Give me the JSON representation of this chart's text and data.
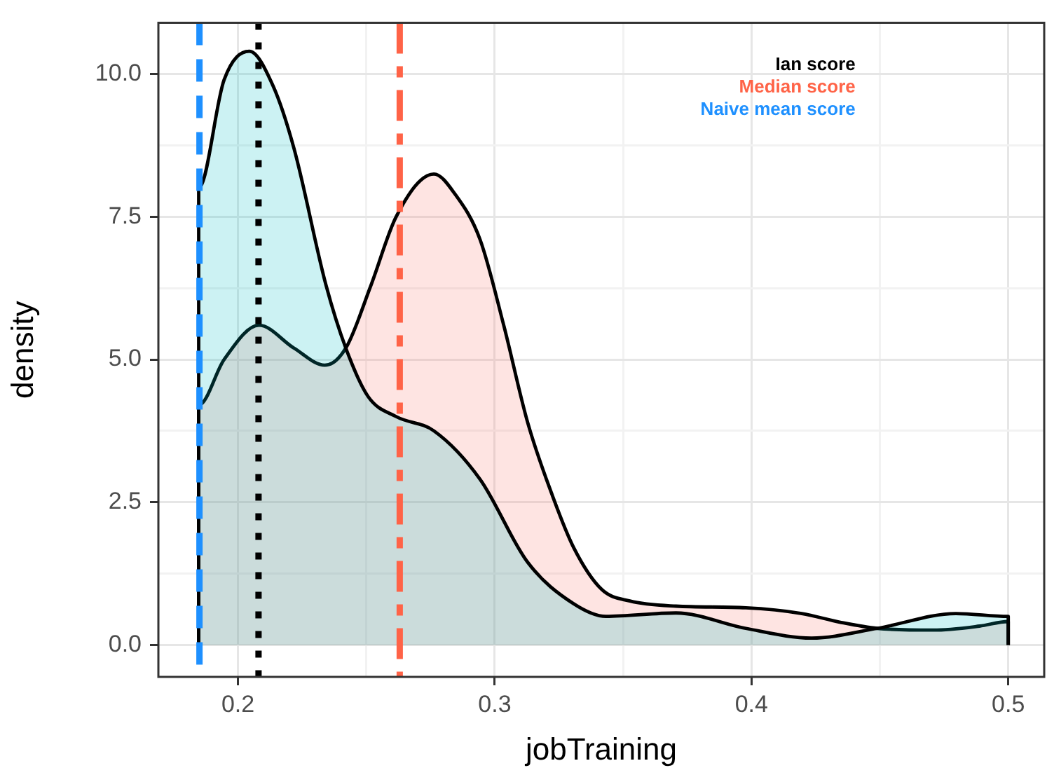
{
  "chart_data": {
    "type": "area",
    "xlabel": "jobTraining",
    "ylabel": "density",
    "xlim": [
      0.169,
      0.514
    ],
    "ylim": [
      -0.56,
      10.9
    ],
    "xticks": [
      0.2,
      {
        "value": 0.25,
        "label": null
      },
      0.3,
      {
        "value": 0.35,
        "label": null
      },
      0.4,
      {
        "value": 0.45,
        "label": null
      },
      0.5
    ],
    "yticks": [
      {
        "value": 0,
        "label": "0.0"
      },
      {
        "value": 1.25,
        "label": null
      },
      2.5,
      {
        "value": 3.75,
        "label": null
      },
      {
        "value": 5,
        "label": "5.0"
      },
      {
        "value": 6.25,
        "label": null
      },
      7.5,
      {
        "value": 8.75,
        "label": null
      },
      {
        "value": 10,
        "label": "10.0"
      }
    ],
    "grid": true,
    "legend": false,
    "marker": "none",
    "line_style": "solid",
    "series": [
      {
        "color": "#f8766d",
        "x": [
          0.1847,
          0.1847,
          0.1946,
          0.2082,
          0.2218,
          0.2338,
          0.242,
          0.2518,
          0.2616,
          0.2763,
          0.2845,
          0.2943,
          0.3035,
          0.3128,
          0.3226,
          0.3308,
          0.3417,
          0.3526,
          0.3706,
          0.3978,
          0.4196,
          0.4343,
          0.449,
          0.4708,
          0.4888,
          0.5,
          0.5
        ],
        "values": [
          0,
          4.2,
          5.0,
          5.6,
          5.2,
          4.9,
          5.2,
          6.3,
          7.5,
          8.25,
          7.9,
          7.1,
          5.6,
          3.9,
          2.6,
          1.7,
          0.97,
          0.77,
          0.68,
          0.65,
          0.55,
          0.4,
          0.29,
          0.26,
          0.33,
          0.41,
          0
        ]
      },
      {
        "color": "#00bfc4",
        "x": [
          0.1847,
          0.1847,
          0.1946,
          0.2044,
          0.2136,
          0.2218,
          0.2343,
          0.242,
          0.2507,
          0.2616,
          0.2763,
          0.2943,
          0.3128,
          0.3308,
          0.3433,
          0.3706,
          0.3978,
          0.4234,
          0.449,
          0.4796,
          0.5,
          0.5
        ],
        "values": [
          0,
          8.0,
          9.9,
          10.4,
          9.8,
          8.7,
          6.3,
          5.2,
          4.35,
          4.0,
          3.75,
          2.9,
          1.45,
          0.72,
          0.5,
          0.56,
          0.29,
          0.12,
          0.29,
          0.55,
          0.5,
          0
        ]
      }
    ],
    "ref_lines": [
      {
        "axis": "x",
        "value": 0.208,
        "label": "Ian score",
        "color": "#000000",
        "line_style": "dotted"
      },
      {
        "axis": "x",
        "value": 0.263,
        "label": "Median score",
        "color": "#ff6347",
        "line_style": "dashdot"
      },
      {
        "axis": "x",
        "value": 0.185,
        "label": "Naive mean score",
        "color": "#1e90ff",
        "line_style": "dashed"
      }
    ]
  }
}
